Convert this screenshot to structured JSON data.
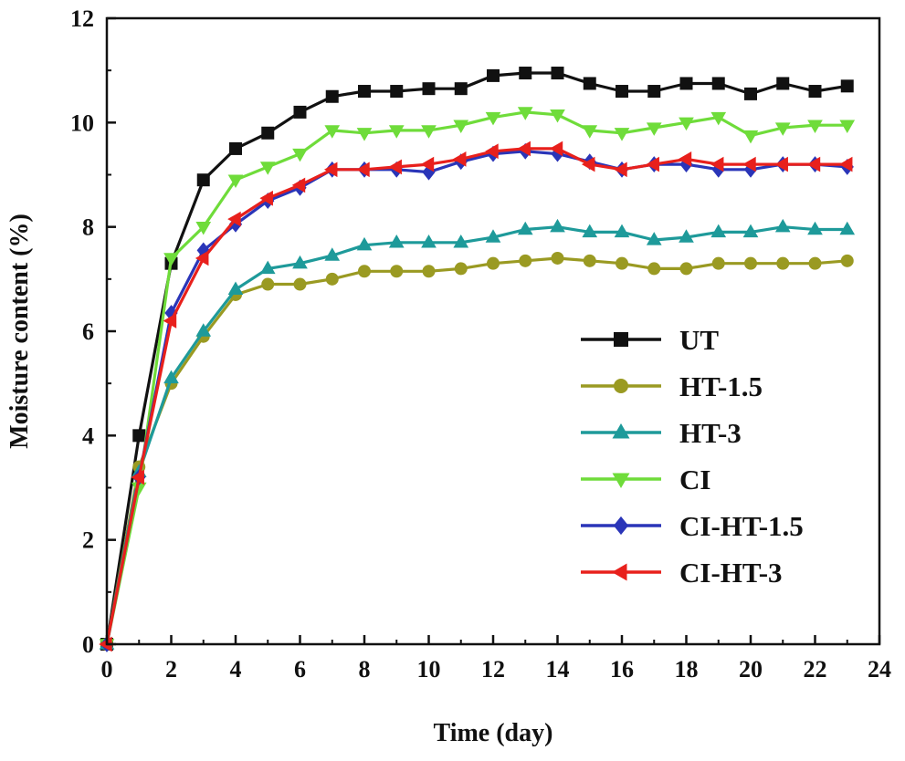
{
  "chart_data": {
    "type": "line",
    "title": "",
    "xlabel": "Time (day)",
    "ylabel": "Moisture content (%)",
    "xlim": [
      0,
      24
    ],
    "ylim": [
      0,
      12
    ],
    "x_ticks": [
      "0",
      "2",
      "4",
      "6",
      "8",
      "10",
      "12",
      "14",
      "16",
      "18",
      "20",
      "22",
      "24"
    ],
    "y_ticks": [
      "0",
      "2",
      "4",
      "6",
      "8",
      "10",
      "12"
    ],
    "grid": false,
    "legend_position": "bottom-right",
    "x": [
      0,
      1,
      2,
      3,
      4,
      5,
      6,
      7,
      8,
      9,
      10,
      11,
      12,
      13,
      14,
      15,
      16,
      17,
      18,
      19,
      20,
      21,
      22,
      23
    ],
    "series": [
      {
        "name": "UT",
        "color": "#111111",
        "marker": "square",
        "values": [
          0,
          4.0,
          7.3,
          8.9,
          9.5,
          9.8,
          10.2,
          10.5,
          10.6,
          10.6,
          10.65,
          10.65,
          10.9,
          10.95,
          10.95,
          10.75,
          10.6,
          10.6,
          10.75,
          10.75,
          10.55,
          10.75,
          10.6,
          10.7
        ]
      },
      {
        "name": "HT-1.5",
        "color": "#9a9a22",
        "marker": "circle",
        "values": [
          0,
          3.4,
          5.0,
          5.9,
          6.7,
          6.9,
          6.9,
          7.0,
          7.15,
          7.15,
          7.15,
          7.2,
          7.3,
          7.35,
          7.4,
          7.35,
          7.3,
          7.2,
          7.2,
          7.3,
          7.3,
          7.3,
          7.3,
          7.35
        ]
      },
      {
        "name": "HT-3",
        "color": "#1e9a9a",
        "marker": "triangle-up",
        "values": [
          0,
          3.3,
          5.1,
          6.0,
          6.8,
          7.2,
          7.3,
          7.45,
          7.65,
          7.7,
          7.7,
          7.7,
          7.8,
          7.95,
          8.0,
          7.9,
          7.9,
          7.75,
          7.8,
          7.9,
          7.9,
          8.0,
          7.95,
          7.95
        ]
      },
      {
        "name": "CI",
        "color": "#6fdc3a",
        "marker": "triangle-down",
        "values": [
          0,
          3.0,
          7.4,
          8.0,
          8.9,
          9.15,
          9.4,
          9.85,
          9.8,
          9.85,
          9.85,
          9.95,
          10.1,
          10.2,
          10.15,
          9.85,
          9.8,
          9.9,
          10.0,
          10.1,
          9.75,
          9.9,
          9.95,
          9.95
        ]
      },
      {
        "name": "CI-HT-1.5",
        "color": "#2a35b8",
        "marker": "diamond",
        "values": [
          0,
          3.2,
          6.35,
          7.55,
          8.05,
          8.5,
          8.75,
          9.1,
          9.1,
          9.1,
          9.05,
          9.25,
          9.4,
          9.45,
          9.4,
          9.25,
          9.1,
          9.2,
          9.2,
          9.1,
          9.1,
          9.2,
          9.2,
          9.15
        ]
      },
      {
        "name": "CI-HT-3",
        "color": "#e8201c",
        "marker": "triangle-left",
        "values": [
          0,
          3.2,
          6.2,
          7.4,
          8.15,
          8.55,
          8.8,
          9.1,
          9.1,
          9.15,
          9.2,
          9.3,
          9.45,
          9.5,
          9.5,
          9.2,
          9.1,
          9.2,
          9.3,
          9.2,
          9.2,
          9.2,
          9.2,
          9.2
        ]
      }
    ]
  }
}
